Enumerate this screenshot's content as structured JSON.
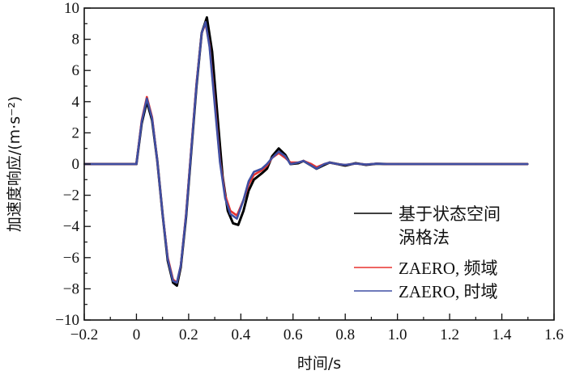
{
  "chart_data": {
    "type": "line",
    "xlabel": "时间/s",
    "ylabel": "加速度响应/(m·s⁻²)",
    "xlim": [
      -0.2,
      1.6
    ],
    "ylim": [
      -10,
      10
    ],
    "xticks": [
      "−0.2",
      "0",
      "0.2",
      "0.4",
      "0.6",
      "0.8",
      "1.0",
      "1.2",
      "1.4",
      "1.6"
    ],
    "yticks": [
      "−10",
      "−8",
      "−6",
      "−4",
      "−2",
      "0",
      "2",
      "4",
      "6",
      "8",
      "10"
    ],
    "grid": false,
    "legend_position": "bottom-right",
    "series": [
      {
        "name": "基于状态空间涡格法",
        "name_lines": [
          "基于状态空间",
          "涡格法"
        ],
        "color": "#000000",
        "x": [
          -0.2,
          0.0,
          0.02,
          0.04,
          0.06,
          0.08,
          0.1,
          0.12,
          0.14,
          0.155,
          0.17,
          0.19,
          0.21,
          0.23,
          0.25,
          0.27,
          0.29,
          0.31,
          0.33,
          0.35,
          0.37,
          0.39,
          0.41,
          0.43,
          0.45,
          0.48,
          0.5,
          0.52,
          0.545,
          0.57,
          0.59,
          0.62,
          0.64,
          0.67,
          0.69,
          0.72,
          0.74,
          0.77,
          0.8,
          0.84,
          0.88,
          0.92,
          0.96,
          1.0,
          1.1,
          1.2,
          1.3,
          1.4,
          1.5
        ],
        "y": [
          0,
          0,
          2.6,
          4.0,
          2.8,
          0.2,
          -3.2,
          -6.2,
          -7.6,
          -7.8,
          -6.6,
          -3.4,
          0.8,
          5.0,
          8.4,
          9.4,
          7.2,
          3.2,
          -0.8,
          -3.0,
          -3.8,
          -3.9,
          -3.0,
          -1.7,
          -1.0,
          -0.6,
          -0.3,
          0.5,
          1.0,
          0.6,
          0.0,
          0.05,
          0.2,
          -0.1,
          -0.3,
          -0.05,
          0.1,
          0.0,
          -0.1,
          0.05,
          -0.05,
          0.02,
          0,
          0,
          0,
          0,
          0,
          0,
          0
        ]
      },
      {
        "name": "ZAERO, 频域",
        "color": "#e8322f",
        "x": [
          -0.2,
          0.0,
          0.02,
          0.04,
          0.06,
          0.08,
          0.1,
          0.12,
          0.14,
          0.155,
          0.17,
          0.19,
          0.21,
          0.23,
          0.25,
          0.265,
          0.28,
          0.3,
          0.32,
          0.34,
          0.36,
          0.385,
          0.41,
          0.43,
          0.45,
          0.48,
          0.5,
          0.52,
          0.545,
          0.57,
          0.59,
          0.62,
          0.64,
          0.67,
          0.69,
          0.72,
          0.74,
          0.77,
          0.8,
          0.84,
          0.88,
          0.92,
          0.96,
          1.0,
          1.1,
          1.2,
          1.3,
          1.4,
          1.5
        ],
        "y": [
          0,
          0,
          2.8,
          4.3,
          3.0,
          0.2,
          -3.2,
          -6.0,
          -7.4,
          -7.6,
          -6.5,
          -3.2,
          1.0,
          5.2,
          8.4,
          9.0,
          7.6,
          4.0,
          0.2,
          -2.0,
          -3.0,
          -3.3,
          -2.3,
          -1.3,
          -0.7,
          -0.4,
          -0.1,
          0.4,
          0.7,
          0.4,
          0.1,
          0.1,
          0.2,
          0.0,
          -0.2,
          0.0,
          0.1,
          0.0,
          -0.05,
          0.03,
          -0.03,
          0.02,
          0,
          0,
          0,
          0,
          0,
          0,
          0
        ]
      },
      {
        "name": "ZAERO, 时域",
        "color": "#3f4fa3",
        "x": [
          -0.2,
          0.0,
          0.02,
          0.04,
          0.06,
          0.08,
          0.1,
          0.12,
          0.14,
          0.155,
          0.17,
          0.19,
          0.21,
          0.23,
          0.25,
          0.265,
          0.28,
          0.3,
          0.32,
          0.34,
          0.36,
          0.385,
          0.41,
          0.43,
          0.45,
          0.48,
          0.5,
          0.52,
          0.545,
          0.57,
          0.59,
          0.62,
          0.64,
          0.67,
          0.69,
          0.72,
          0.74,
          0.77,
          0.8,
          0.84,
          0.88,
          0.92,
          0.96,
          1.0,
          1.1,
          1.2,
          1.3,
          1.4,
          1.5
        ],
        "y": [
          0,
          0,
          2.7,
          4.2,
          2.9,
          0.2,
          -3.2,
          -6.1,
          -7.5,
          -7.6,
          -6.5,
          -3.3,
          0.9,
          5.1,
          8.4,
          9.1,
          7.5,
          3.8,
          0.1,
          -2.2,
          -3.2,
          -3.5,
          -2.3,
          -1.1,
          -0.5,
          -0.3,
          0.0,
          0.4,
          0.8,
          0.5,
          0.0,
          0.1,
          0.2,
          -0.1,
          -0.3,
          0.0,
          0.1,
          0.0,
          -0.05,
          0.03,
          -0.03,
          0.02,
          0,
          0,
          0,
          0,
          0,
          0,
          0
        ]
      }
    ]
  }
}
